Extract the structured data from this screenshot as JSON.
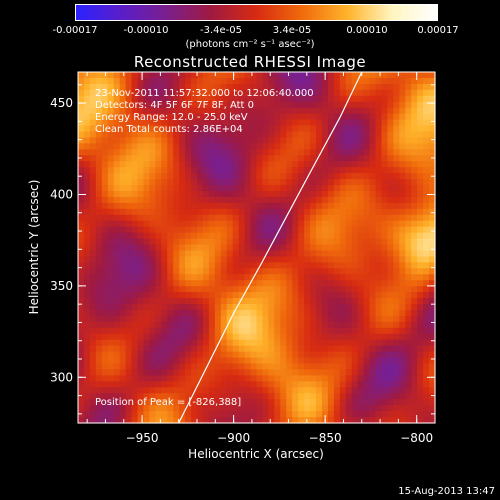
{
  "colorbar": {
    "ticks": [
      "-0.00017",
      "-0.00010",
      "-3.4e-05",
      "3.4e-05",
      "0.00010",
      "0.00017"
    ],
    "unit": "(photons cm⁻² s⁻¹ asec⁻²)",
    "stops": [
      "#2b22ff",
      "#5a1ec8",
      "#7a1f8e",
      "#a01a40",
      "#d72b12",
      "#f06a0c",
      "#ffb22a",
      "#fff5c0",
      "#ffffff"
    ]
  },
  "chart_data": {
    "type": "heatmap",
    "title": "Reconstructed RHESSI Image",
    "xlabel": "Heliocentric X (arcsec)",
    "ylabel": "Heliocentric Y (arcsec)",
    "xlim": [
      -985,
      -790
    ],
    "ylim": [
      275,
      467
    ],
    "xticks": [
      -950,
      -900,
      -850,
      -800
    ],
    "yticks": [
      300,
      350,
      400,
      450
    ],
    "xtick_labels": [
      "−950",
      "−900",
      "−850",
      "−800"
    ],
    "ytick_labels": [
      "300",
      "350",
      "400",
      "450"
    ],
    "peak": [
      -826,
      388
    ],
    "limb_points": [
      [
        -930,
        275
      ],
      [
        -915,
        305
      ],
      [
        -900,
        335
      ],
      [
        -885,
        362
      ],
      [
        -870,
        390
      ],
      [
        -855,
        418
      ],
      [
        -842,
        442
      ],
      [
        -830,
        467
      ]
    ]
  },
  "annotations": {
    "time_range": "23-Nov-2011 11:57:32.000 to 12:06:40.000",
    "detectors": "Detectors: 4F 5F 6F 7F 8F, Att 0",
    "energy": "Energy Range: 12.0 - 25.0 keV",
    "clean": "Clean    Total counts: 2.86E+04",
    "peak_label": "Position of Peak = [-826,388]"
  },
  "timestamp": "15-Aug-2013 13:47"
}
